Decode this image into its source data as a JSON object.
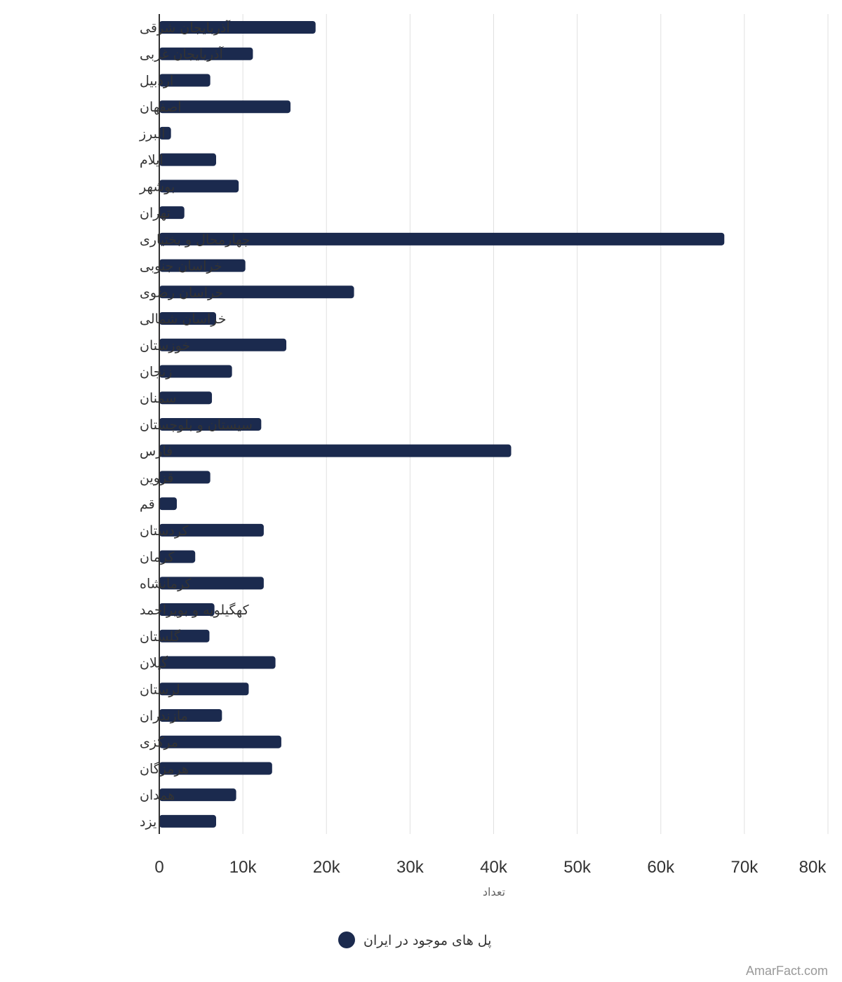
{
  "colors": {
    "bar": "#1b2a4e",
    "grid": "#e0e0e0",
    "axis": "#333333"
  },
  "chart_data": {
    "type": "bar",
    "orientation": "horizontal",
    "categories": [
      "آذربایجان شرقی",
      "آذربایجان غربی",
      "اردبیل",
      "اصفهان",
      "البرز",
      "ایلام",
      "بوشهر",
      "تهران",
      "چهارمحال و بختیاری",
      "خراسان جنوبی",
      "خراسان رضوی",
      "خراسان شمالی",
      "خوزستان",
      "زنجان",
      "سمنان",
      "سیستان و بلوچستان",
      "فارس",
      "قزوین",
      "قم",
      "کردستان",
      "کرمان",
      "کرمانشاه",
      "کهگیلویه و بویراحمد",
      "گلستان",
      "گیلان",
      "لرستان",
      "مازندران",
      "مرکزی",
      "هرمزگان",
      "همدان",
      "یزد"
    ],
    "series": [
      {
        "name": "پل های موجود در ایران",
        "color": "#1b2a4e",
        "values": [
          18700,
          11200,
          6100,
          15700,
          1400,
          6800,
          9500,
          3000,
          67600,
          10300,
          23300,
          6800,
          15200,
          8700,
          6300,
          12200,
          42100,
          6100,
          2100,
          12500,
          4300,
          12500,
          6600,
          6000,
          13900,
          10700,
          7500,
          14600,
          13500,
          9200,
          6800
        ]
      }
    ],
    "xlim": [
      0,
      80000
    ],
    "xticks": [
      0,
      10000,
      20000,
      30000,
      40000,
      50000,
      60000,
      70000,
      80000
    ],
    "xtick_labels": [
      "0",
      "10k",
      "20k",
      "30k",
      "40k",
      "50k",
      "60k",
      "70k",
      "80k"
    ],
    "xlabel": "تعداد",
    "ylabel": "",
    "title": "",
    "grid": true,
    "legend": "bottom-center"
  },
  "watermark": "AmarFact.com"
}
